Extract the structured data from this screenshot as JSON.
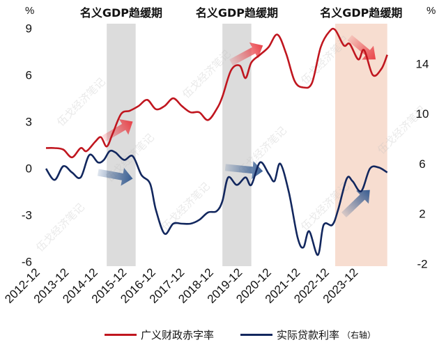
{
  "chart_data": {
    "type": "line",
    "left_axis_unit": "%",
    "right_axis_unit": "%",
    "left_ticks": [
      9,
      6,
      3,
      0,
      -3,
      -6
    ],
    "right_ticks": [
      14,
      10,
      6,
      2,
      -2
    ],
    "ylim_left": [
      -6.3,
      9.3
    ],
    "ylim_right": [
      -2.2,
      17.2
    ],
    "x_labels": [
      "2012-12",
      "2013-12",
      "2014-12",
      "2015-12",
      "2016-12",
      "2017-12",
      "2018-12",
      "2019-12",
      "2020-12",
      "2021-12",
      "2022-12",
      "2023-12"
    ],
    "shaded_periods": [
      {
        "label": "名义GDP趋缓期",
        "start": 2015.0,
        "end": 2016.0,
        "color": "#dcdcdc"
      },
      {
        "label": "名义GDP趋缓期",
        "start": 2019.0,
        "end": 2020.0,
        "color": "#dcdcdc"
      },
      {
        "label": "名义GDP趋缓期",
        "start": 2022.9,
        "end": 2024.7,
        "color": "#f7ddd0"
      }
    ],
    "series": [
      {
        "name": "广义财政赤字率",
        "axis": "left",
        "color": "#c0161f",
        "x": [
          2012.9,
          2013.2,
          2013.5,
          2013.8,
          2014.1,
          2014.3,
          2014.6,
          2014.8,
          2015.0,
          2015.2,
          2015.5,
          2015.8,
          2016.1,
          2016.4,
          2016.7,
          2017.0,
          2017.3,
          2017.6,
          2017.9,
          2018.2,
          2018.5,
          2018.8,
          2019.0,
          2019.3,
          2019.6,
          2019.8,
          2020.0,
          2020.3,
          2020.6,
          2020.9,
          2021.2,
          2021.5,
          2021.8,
          2022.1,
          2022.4,
          2022.7,
          2022.9,
          2023.2,
          2023.4,
          2023.7,
          2023.9,
          2024.2,
          2024.5,
          2024.7
        ],
        "y": [
          1.3,
          1.3,
          1.2,
          0.7,
          1.3,
          1.1,
          1.7,
          2.0,
          1.4,
          2.2,
          3.5,
          3.7,
          4.0,
          4.4,
          3.8,
          4.0,
          4.5,
          4.0,
          3.6,
          3.6,
          3.1,
          3.8,
          4.6,
          6.3,
          6.6,
          5.8,
          6.8,
          7.3,
          7.8,
          8.6,
          7.4,
          5.6,
          5.2,
          5.5,
          7.8,
          8.8,
          8.9,
          7.9,
          8.0,
          7.0,
          7.6,
          6.0,
          6.4,
          7.3
        ]
      },
      {
        "name": "实际贷款利率",
        "axis": "right",
        "color": "#12275e",
        "x": [
          2012.9,
          2013.2,
          2013.5,
          2013.8,
          2014.1,
          2014.4,
          2014.7,
          2014.9,
          2015.1,
          2015.3,
          2015.6,
          2015.9,
          2016.2,
          2016.5,
          2016.7,
          2017.0,
          2017.3,
          2017.6,
          2017.9,
          2018.2,
          2018.5,
          2018.8,
          2019.0,
          2019.2,
          2019.5,
          2019.8,
          2020.0,
          2020.3,
          2020.6,
          2020.8,
          2021.0,
          2021.3,
          2021.6,
          2021.8,
          2022.0,
          2022.3,
          2022.5,
          2022.8,
          2023.0,
          2023.3,
          2023.5,
          2023.8,
          2024.1,
          2024.4,
          2024.7
        ],
        "y": [
          5.6,
          4.7,
          5.8,
          5.3,
          4.9,
          6.7,
          6.1,
          6.3,
          7.0,
          6.9,
          6.3,
          6.6,
          5.1,
          4.4,
          2.3,
          0.4,
          1.2,
          1.2,
          1.2,
          1.5,
          2.1,
          2.2,
          3.0,
          4.9,
          4.3,
          4.9,
          4.3,
          6.1,
          5.2,
          4.6,
          6.0,
          3.7,
          0.1,
          -0.7,
          0.6,
          -1.3,
          1.1,
          1.1,
          2.3,
          4.8,
          4.6,
          3.8,
          5.6,
          5.7,
          5.3
        ]
      }
    ],
    "arrows": [
      {
        "axis": "left",
        "from": [
          2014.9,
          1.9
        ],
        "to": [
          2015.9,
          3.0
        ],
        "color": "#e8383f"
      },
      {
        "axis": "right",
        "from": [
          2014.7,
          5.3
        ],
        "to": [
          2015.9,
          4.8
        ],
        "color": "#2e568e"
      },
      {
        "axis": "left",
        "from": [
          2019.3,
          6.8
        ],
        "to": [
          2020.4,
          7.9
        ],
        "color": "#e8383f"
      },
      {
        "axis": "right",
        "from": [
          2019.1,
          5.7
        ],
        "to": [
          2020.4,
          5.4
        ],
        "color": "#2e568e"
      },
      {
        "axis": "left",
        "from": [
          2023.4,
          8.4
        ],
        "to": [
          2024.3,
          7.0
        ],
        "color": "#e8383f"
      },
      {
        "axis": "right",
        "from": [
          2023.2,
          1.9
        ],
        "to": [
          2024.1,
          3.9
        ],
        "color": "#2e568e"
      }
    ],
    "watermark": "伍戈经济笔记",
    "legend": [
      {
        "label": "广义财政赤字率",
        "suffix": "",
        "color": "#c0161f"
      },
      {
        "label": "实际贷款利率",
        "suffix": "（右轴）",
        "color": "#12275e"
      }
    ]
  }
}
